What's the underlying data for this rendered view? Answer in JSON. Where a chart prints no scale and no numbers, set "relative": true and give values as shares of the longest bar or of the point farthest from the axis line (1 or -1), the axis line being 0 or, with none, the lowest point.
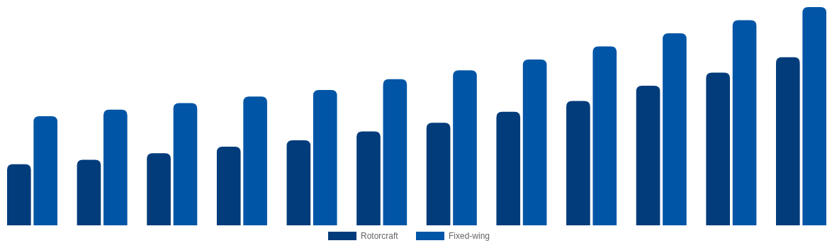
{
  "chart_data": {
    "type": "bar",
    "relative": true,
    "categories": [
      null,
      null,
      null,
      null,
      null,
      null,
      null,
      null,
      null,
      null,
      null,
      null
    ],
    "series": [
      {
        "name": "Rotorcraft",
        "color": "#023c7b",
        "values": [
          0.28,
          0.3,
          0.33,
          0.36,
          0.39,
          0.43,
          0.47,
          0.52,
          0.57,
          0.64,
          0.7,
          0.77
        ]
      },
      {
        "name": "Fixed-wing",
        "color": "#0055a6",
        "values": [
          0.5,
          0.53,
          0.56,
          0.59,
          0.62,
          0.67,
          0.71,
          0.76,
          0.82,
          0.88,
          0.94,
          1
        ]
      }
    ],
    "legend": "bottom"
  }
}
